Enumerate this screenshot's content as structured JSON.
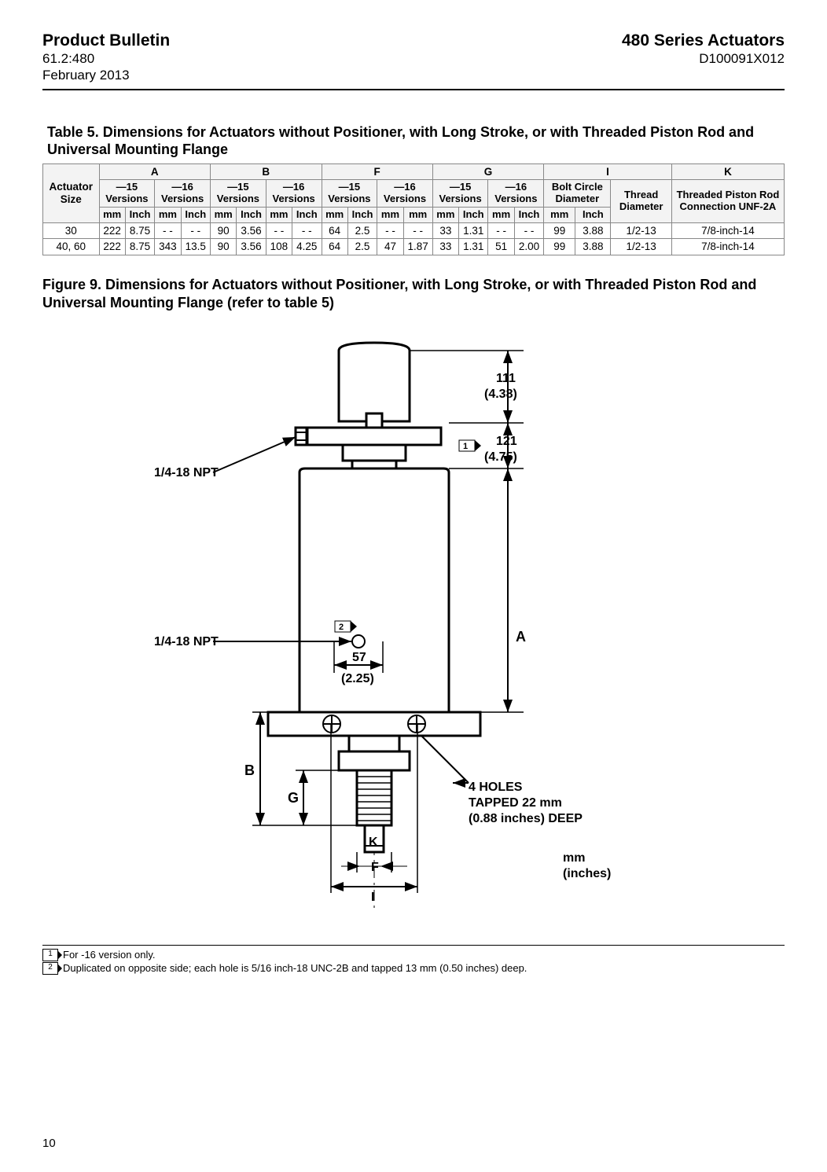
{
  "header": {
    "left_title": "Product Bulletin",
    "left_line1": "61.2:480",
    "left_line2": "February 2013",
    "right_title": "480 Series Actuators",
    "right_line1": "D100091X012"
  },
  "table": {
    "caption": "Table 5. Dimensions for Actuators without Positioner, with Long Stroke, or with Threaded Piston Rod and Universal Mounting Flange",
    "col_actuator": "Actuator Size",
    "groups": [
      "A",
      "B",
      "F",
      "G",
      "I",
      "K"
    ],
    "sub_versions_15": "—15 Versions",
    "sub_versions_16": "—16 Versions",
    "sub_bolt": "Bolt Circle Diameter",
    "sub_thread": "Thread Diameter",
    "sub_rod": "Threaded Piston Rod Connection UNF-2A",
    "unit_mm": "mm",
    "unit_inch": "Inch",
    "rows": [
      {
        "size": "30",
        "A15mm": "222",
        "A15in": "8.75",
        "A16mm": "- -",
        "A16in": "- -",
        "B15mm": "90",
        "B15in": "3.56",
        "B16mm": "- -",
        "B16in": "- -",
        "F15mm": "64",
        "F15in": "2.5",
        "F16mm": "- -",
        "F16in": "- -",
        "G15mm": "33",
        "G15in": "1.31",
        "G16mm": "- -",
        "G16in": "- -",
        "Imm": "99",
        "Iin": "3.88",
        "thread": "1/2-13",
        "rod": "7/8-inch-14"
      },
      {
        "size": "40, 60",
        "A15mm": "222",
        "A15in": "8.75",
        "A16mm": "343",
        "A16in": "13.5",
        "B15mm": "90",
        "B15in": "3.56",
        "B16mm": "108",
        "B16in": "4.25",
        "F15mm": "64",
        "F15in": "2.5",
        "F16mm": "47",
        "F16in": "1.87",
        "G15mm": "33",
        "G15in": "1.31",
        "G16mm": "51",
        "G16in": "2.00",
        "Imm": "99",
        "Iin": "3.88",
        "thread": "1/2-13",
        "rod": "7/8-inch-14"
      }
    ]
  },
  "figure": {
    "caption": "Figure 9. Dimensions for Actuators without Positioner, with Long Stroke, or with Threaded Piston Rod and Universal Mounting Flange (refer to table 5)",
    "npt_label": "1/4-18 NPT",
    "dim_111": "111",
    "dim_111_in": "(4.38)",
    "dim_121": "121",
    "dim_121_in": "(4.75)",
    "dim_57": "57",
    "dim_57_in": "(2.25)",
    "label_A": "A",
    "label_B": "B",
    "label_G": "G",
    "label_K": "K",
    "label_F": "F",
    "label_I": "I",
    "holes_l1": "4 HOLES",
    "holes_l2": "TAPPED    22    mm",
    "holes_l3": "(0.88 inches) DEEP",
    "units_mm": "mm",
    "units_in": "(inches)",
    "note1": "1",
    "note2": "2"
  },
  "footnotes": {
    "n1_num": "1",
    "n1_text": "For -16 version only.",
    "n2_num": "2",
    "n2_text": "Duplicated on opposite side; each hole is 5/16 inch-18 UNC-2B and tapped 13 mm (0.50 inches) deep."
  },
  "page_number": "10"
}
